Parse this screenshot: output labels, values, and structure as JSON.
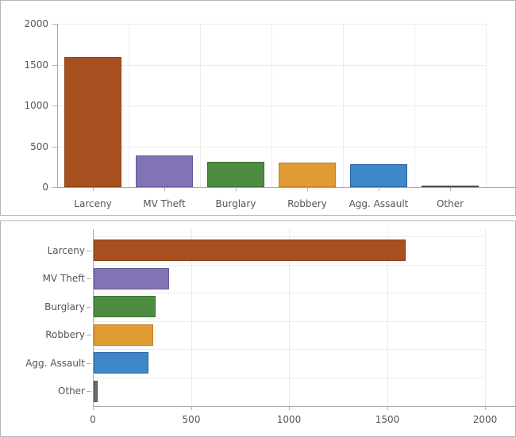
{
  "chart_data": [
    {
      "type": "bar",
      "orientation": "vertical",
      "title": "",
      "xlabel": "",
      "ylabel": "",
      "categories": [
        "Larceny",
        "MV Theft",
        "Burglary",
        "Robbery",
        "Agg. Assault",
        "Other"
      ],
      "values": [
        1590,
        385,
        315,
        305,
        280,
        20
      ],
      "ylim": [
        0,
        2000
      ],
      "yticks": [
        0,
        500,
        1000,
        1500,
        2000
      ],
      "grid": true,
      "legend": "none",
      "fills": [
        "#a8501f",
        "#8173b4",
        "#4e8c42",
        "#e09b35",
        "#3e87c8",
        "#6e6e6e"
      ],
      "strokes": [
        "#8a3f16",
        "#67589f",
        "#3a7030",
        "#c17f22",
        "#2c66a0",
        "#4f4f4f"
      ]
    },
    {
      "type": "bar",
      "orientation": "horizontal",
      "title": "",
      "xlabel": "",
      "ylabel": "",
      "categories": [
        "Larceny",
        "MV Theft",
        "Burglary",
        "Robbery",
        "Agg. Assault",
        "Other"
      ],
      "values": [
        1590,
        385,
        315,
        305,
        280,
        20
      ],
      "xlim": [
        0,
        2000
      ],
      "xticks": [
        0,
        500,
        1000,
        1500,
        2000
      ],
      "grid": true,
      "legend": "none",
      "fills": [
        "#a8501f",
        "#8173b4",
        "#4e8c42",
        "#e09b35",
        "#3e87c8",
        "#6e6e6e"
      ],
      "strokes": [
        "#8a3f16",
        "#67589f",
        "#3a7030",
        "#c17f22",
        "#2c66a0",
        "#4f4f4f"
      ]
    }
  ],
  "theme": {
    "grid_color": "#ececec",
    "axis_color": "#a8a8a8",
    "tick_color": "#b0b0b0",
    "text_color": "#555555",
    "panel_border": "#b5b5b5",
    "background": "#ffffff"
  }
}
